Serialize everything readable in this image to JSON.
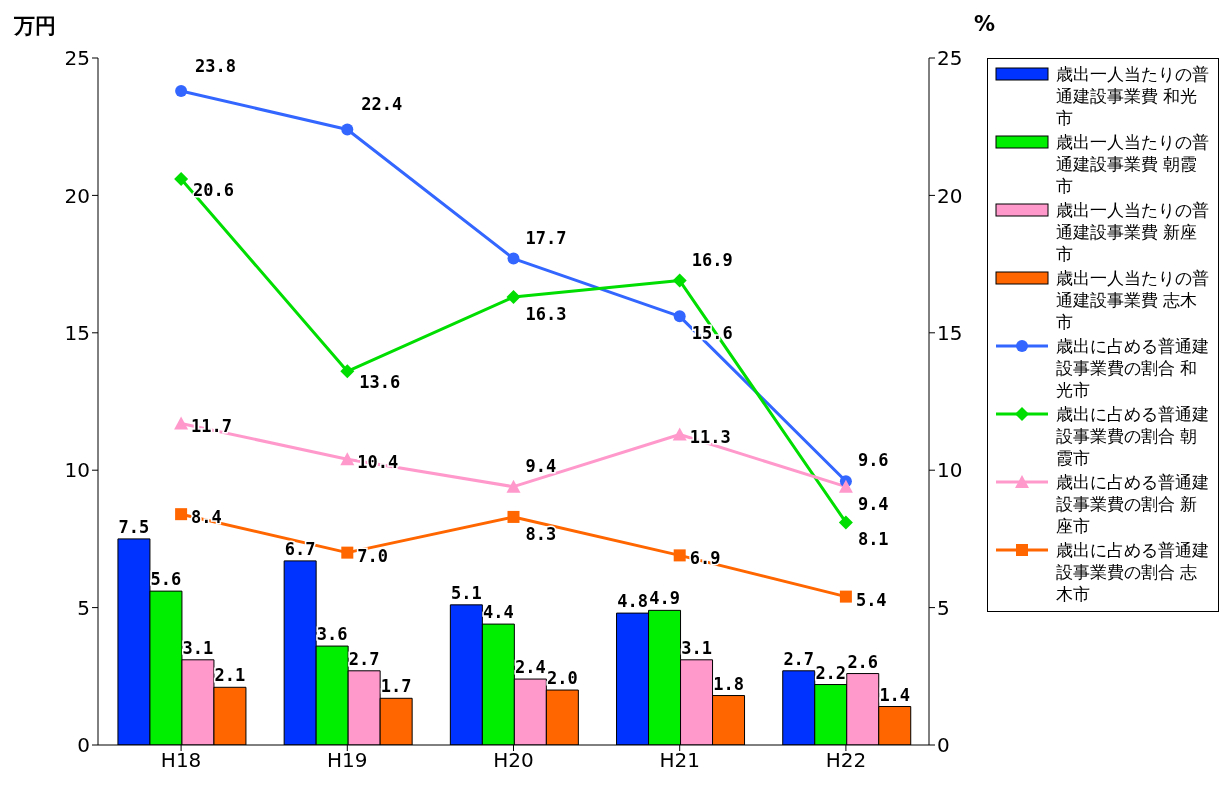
{
  "chart_data": {
    "type": "bar",
    "ylabel": "万円",
    "y2label": "%",
    "categories": [
      "H18",
      "H19",
      "H20",
      "H21",
      "H22"
    ],
    "ylim": [
      0,
      25
    ],
    "yticks": [
      0,
      5,
      10,
      15,
      20,
      25
    ],
    "y2lim": [
      0,
      25
    ],
    "y2ticks": [
      0,
      5,
      10,
      15,
      20,
      25
    ],
    "grid": false,
    "legend": "right",
    "series": [
      {
        "name": "歳出一人当たりの普通建設事業費 和光市",
        "color": "#0033ff",
        "values": [
          7.5,
          6.7,
          5.1,
          4.8,
          2.7
        ],
        "value_labels": [
          "7.5",
          "6.7",
          "5.1",
          "4.8",
          "2.7"
        ]
      },
      {
        "name": "歳出一人当たりの普通建設事業費 朝霞市",
        "color": "#00ee00",
        "values": [
          5.6,
          3.6,
          4.4,
          4.9,
          2.2
        ],
        "value_labels": [
          "5.6",
          "3.6",
          "4.4",
          "4.9",
          "2.2"
        ]
      },
      {
        "name": "歳出一人当たりの普通建設事業費 新座市",
        "color": "#ff99cc",
        "values": [
          3.1,
          2.7,
          2.4,
          3.1,
          2.6
        ],
        "value_labels": [
          "3.1",
          "2.7",
          "2.4",
          "3.1",
          "2.6"
        ]
      },
      {
        "name": "歳出一人当たりの普通建設事業費 志木市",
        "color": "#ff6600",
        "values": [
          2.1,
          1.7,
          2.0,
          1.8,
          1.4
        ],
        "value_labels": [
          "2.1",
          "1.7",
          "2.0",
          "1.8",
          "1.4"
        ]
      },
      {
        "name": "歳出に占める普通建設事業費の割合 和光市",
        "type": "line",
        "axis": "y2",
        "marker": "circle",
        "color": "#3366ff",
        "values": [
          23.8,
          22.4,
          17.7,
          15.6,
          9.6
        ],
        "value_labels": [
          "23.8",
          "22.4",
          "17.7",
          "15.6",
          "9.6"
        ]
      },
      {
        "name": "歳出に占める普通建設事業費の割合 朝霞市",
        "type": "line",
        "axis": "y2",
        "marker": "diamond",
        "color": "#00dd00",
        "values": [
          20.6,
          13.6,
          16.3,
          16.9,
          8.1
        ],
        "value_labels": [
          "20.6",
          "13.6",
          "16.3",
          "16.9",
          "8.1"
        ]
      },
      {
        "name": "歳出に占める普通建設事業費の割合 新座市",
        "type": "line",
        "axis": "y2",
        "marker": "triangle",
        "color": "#ff99cc",
        "values": [
          11.7,
          10.4,
          9.4,
          11.3,
          9.4
        ],
        "value_labels": [
          "11.7",
          "10.4",
          "9.4",
          "11.3",
          "9.4"
        ]
      },
      {
        "name": "歳出に占める普通建設事業費の割合 志木市",
        "type": "line",
        "axis": "y2",
        "marker": "square",
        "color": "#ff6600",
        "values": [
          8.4,
          7.0,
          8.3,
          6.9,
          5.4
        ],
        "value_labels": [
          "8.4",
          "7.0",
          "8.3",
          "6.9",
          "5.4"
        ]
      }
    ]
  }
}
